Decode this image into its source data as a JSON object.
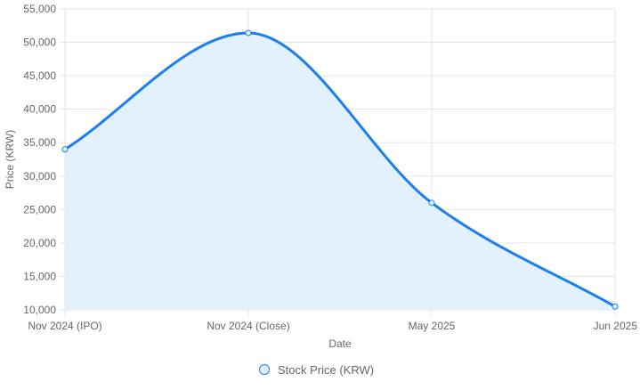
{
  "chart_data": {
    "type": "area",
    "x_categories": [
      "Nov 2024 (IPO)",
      "Nov 2024 (Close)",
      "May 2025",
      "Jun 2025"
    ],
    "series": [
      {
        "name": "Stock Price (KRW)",
        "values": [
          34000,
          51400,
          26000,
          10500
        ],
        "color": "#1c7ef0",
        "fill": "#e3f1fc"
      }
    ],
    "xlabel": "Date",
    "ylabel": "Price (KRW)",
    "ylim": [
      10000,
      55000
    ],
    "yticks": [
      10000,
      15000,
      20000,
      25000,
      30000,
      35000,
      40000,
      45000,
      50000,
      55000
    ],
    "ytick_labels": [
      "10,000",
      "15,000",
      "20,000",
      "25,000",
      "30,000",
      "35,000",
      "40,000",
      "45,000",
      "50,000",
      "55,000"
    ],
    "grid": true,
    "legend_position": "bottom"
  },
  "colors": {
    "grid": "#e6e6e6",
    "axis_text": "#666666"
  }
}
